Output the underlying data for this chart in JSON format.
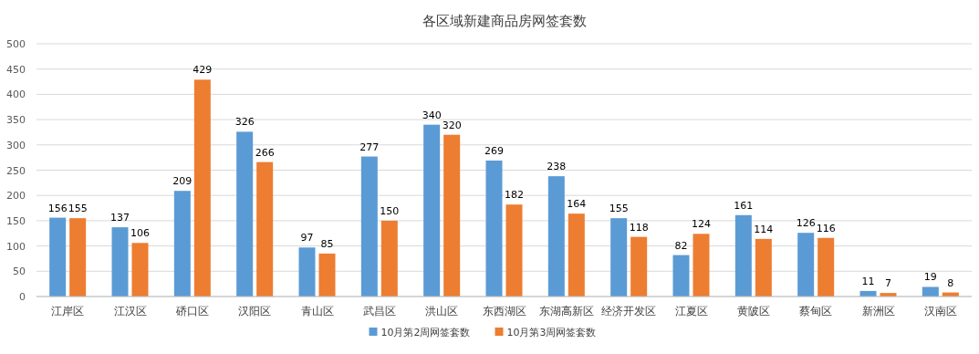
{
  "chart_data": {
    "type": "bar",
    "title": "各区域新建商品房网签套数",
    "categories": [
      "江岸区",
      "江汉区",
      "硚口区",
      "汉阳区",
      "青山区",
      "武昌区",
      "洪山区",
      "东西湖区",
      "东湖高新区",
      "经济开发区",
      "江夏区",
      "黄陂区",
      "蔡甸区",
      "新洲区",
      "汉南区"
    ],
    "series": [
      {
        "name": "10月第2周网签套数",
        "color": "#5b9bd5",
        "values": [
          156,
          137,
          209,
          326,
          97,
          277,
          340,
          269,
          238,
          155,
          82,
          161,
          126,
          11,
          19
        ]
      },
      {
        "name": "10月第3周网签套数",
        "color": "#ed7d31",
        "values": [
          155,
          106,
          429,
          266,
          85,
          150,
          320,
          182,
          164,
          118,
          124,
          114,
          116,
          7,
          8
        ]
      }
    ],
    "ylim": [
      0,
      500
    ],
    "yticks": [
      0,
      50,
      100,
      150,
      200,
      250,
      300,
      350,
      400,
      450,
      500
    ],
    "grid": "y",
    "legend": "bottom",
    "data_labels": true
  }
}
